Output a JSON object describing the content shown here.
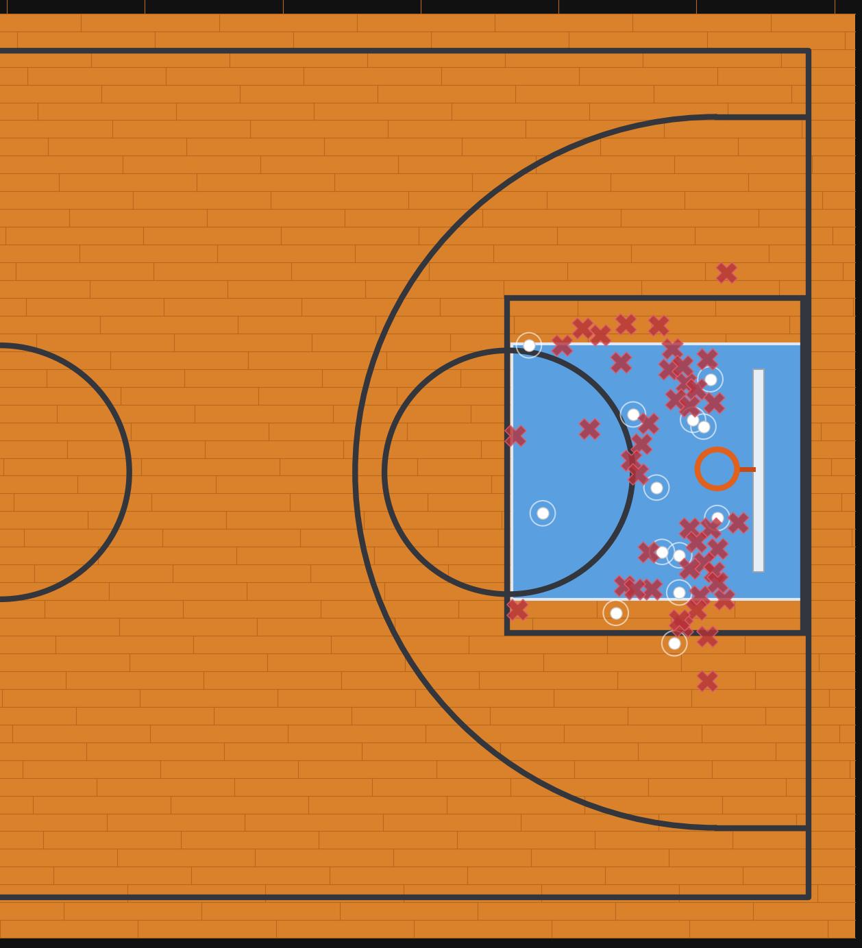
{
  "chart_data": {
    "type": "scatter",
    "xlim": [
      0,
      50
    ],
    "ylim": [
      -3,
      53
    ],
    "tick_labels": false,
    "grid": false,
    "series": [
      {
        "marker": "o",
        "color": "#ffffff",
        "x": [
          30.68,
          36.72,
          40.2,
          41.2,
          38.08,
          31.48,
          41.6,
          39.4,
          38.4,
          39.4,
          35.72,
          39.12,
          40.8
        ],
        "y": [
          32.6,
          28.52,
          28.2,
          30.6,
          24.2,
          22.68,
          22.4,
          20.2,
          20.4,
          18.0,
          16.8,
          15.0,
          27.8
        ]
      },
      {
        "marker": "x",
        "color": "#b5313a",
        "x": [
          42.12,
          33.8,
          36.28,
          38.2,
          34.8,
          32.6,
          36.0,
          39.0,
          41.0,
          38.8,
          39.8,
          40.4,
          39.2,
          41.4,
          40.0,
          39.6,
          37.6,
          34.2,
          29.88,
          37.2,
          36.6,
          37.0,
          40.0,
          41.2,
          42.8,
          40.4,
          41.6,
          37.6,
          40.8,
          40.0,
          41.4,
          36.2,
          37.8,
          40.6,
          42.0,
          30.0,
          40.4,
          39.6,
          41.0,
          41.0,
          39.4,
          41.6,
          36.8
        ],
        "y": [
          36.88,
          33.6,
          33.88,
          33.8,
          33.2,
          32.6,
          31.6,
          32.4,
          31.8,
          31.2,
          30.4,
          30.0,
          29.4,
          29.2,
          29.0,
          31.4,
          28.0,
          27.68,
          27.28,
          26.8,
          25.8,
          25.0,
          21.8,
          21.8,
          22.12,
          21.0,
          20.6,
          20.4,
          19.8,
          19.4,
          19.2,
          18.4,
          18.2,
          17.8,
          17.6,
          17.0,
          17.0,
          16.0,
          15.4,
          12.8,
          16.4,
          18.6,
          18.2
        ]
      }
    ]
  }
}
